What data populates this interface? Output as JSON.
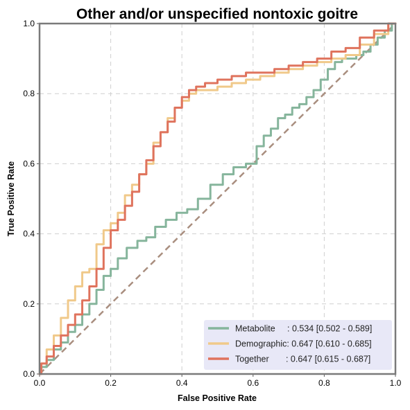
{
  "chart_data": {
    "type": "line",
    "title": "Other and/or unspecified nontoxic goitre",
    "xlabel": "False Positive Rate",
    "ylabel": "True Positive Rate",
    "xlim": [
      0,
      1
    ],
    "ylim": [
      0,
      1
    ],
    "x_ticks": [
      "0.0",
      "0.2",
      "0.4",
      "0.6",
      "0.8",
      "1.0"
    ],
    "y_ticks": [
      "0.0",
      "0.2",
      "0.4",
      "0.6",
      "0.8",
      "1.0"
    ],
    "grid": true,
    "legend_position": "bottom-right",
    "diagonal": {
      "x": [
        0,
        1
      ],
      "y": [
        0,
        1
      ],
      "color": "#a98e7f"
    },
    "series": [
      {
        "name": "Metabolite",
        "legend_label": "Metabolite     : 0.534 [0.502 - 0.589]",
        "color": "#86b59c",
        "x": [
          0,
          0.01,
          0.03,
          0.05,
          0.07,
          0.09,
          0.11,
          0.13,
          0.15,
          0.17,
          0.19,
          0.21,
          0.23,
          0.26,
          0.29,
          0.31,
          0.34,
          0.37,
          0.4,
          0.43,
          0.46,
          0.5,
          0.53,
          0.56,
          0.6,
          0.62,
          0.64,
          0.66,
          0.68,
          0.7,
          0.72,
          0.74,
          0.76,
          0.78,
          0.8,
          0.82,
          0.84,
          0.86,
          0.88,
          0.9,
          0.92,
          0.94,
          0.96,
          0.98,
          1.0
        ],
        "y": [
          0,
          0.02,
          0.04,
          0.07,
          0.09,
          0.12,
          0.14,
          0.17,
          0.2,
          0.24,
          0.28,
          0.3,
          0.33,
          0.36,
          0.38,
          0.39,
          0.42,
          0.44,
          0.46,
          0.47,
          0.5,
          0.54,
          0.57,
          0.59,
          0.6,
          0.65,
          0.68,
          0.7,
          0.73,
          0.74,
          0.76,
          0.77,
          0.79,
          0.81,
          0.84,
          0.87,
          0.89,
          0.9,
          0.9,
          0.91,
          0.92,
          0.94,
          0.96,
          0.98,
          1.0
        ]
      },
      {
        "name": "Demographic",
        "legend_label": "Demographic: 0.647 [0.610 - 0.685]",
        "color": "#f0c98a",
        "x": [
          0,
          0.01,
          0.03,
          0.05,
          0.07,
          0.09,
          0.11,
          0.13,
          0.15,
          0.17,
          0.19,
          0.21,
          0.23,
          0.25,
          0.27,
          0.29,
          0.31,
          0.33,
          0.35,
          0.37,
          0.39,
          0.41,
          0.43,
          0.45,
          0.48,
          0.52,
          0.56,
          0.6,
          0.64,
          0.68,
          0.72,
          0.76,
          0.8,
          0.84,
          0.88,
          0.92,
          0.96,
          1.0
        ],
        "y": [
          0,
          0.03,
          0.07,
          0.11,
          0.16,
          0.21,
          0.25,
          0.29,
          0.3,
          0.37,
          0.41,
          0.43,
          0.46,
          0.51,
          0.54,
          0.57,
          0.6,
          0.66,
          0.69,
          0.73,
          0.76,
          0.78,
          0.8,
          0.81,
          0.81,
          0.82,
          0.83,
          0.84,
          0.85,
          0.86,
          0.87,
          0.88,
          0.89,
          0.9,
          0.91,
          0.94,
          0.97,
          1.0
        ]
      },
      {
        "name": "Together",
        "legend_label": "Together       : 0.647 [0.615 - 0.687]",
        "color": "#df735d",
        "x": [
          0,
          0.01,
          0.03,
          0.05,
          0.07,
          0.09,
          0.11,
          0.13,
          0.15,
          0.17,
          0.19,
          0.21,
          0.23,
          0.25,
          0.27,
          0.29,
          0.31,
          0.33,
          0.35,
          0.37,
          0.39,
          0.41,
          0.43,
          0.45,
          0.48,
          0.52,
          0.56,
          0.6,
          0.64,
          0.68,
          0.72,
          0.76,
          0.8,
          0.84,
          0.88,
          0.92,
          0.96,
          1.0
        ],
        "y": [
          0,
          0.03,
          0.05,
          0.08,
          0.11,
          0.14,
          0.17,
          0.21,
          0.25,
          0.3,
          0.36,
          0.41,
          0.44,
          0.48,
          0.52,
          0.57,
          0.61,
          0.65,
          0.69,
          0.72,
          0.76,
          0.79,
          0.81,
          0.82,
          0.83,
          0.84,
          0.85,
          0.86,
          0.86,
          0.87,
          0.88,
          0.89,
          0.9,
          0.92,
          0.93,
          0.96,
          0.98,
          1.0
        ]
      }
    ]
  }
}
